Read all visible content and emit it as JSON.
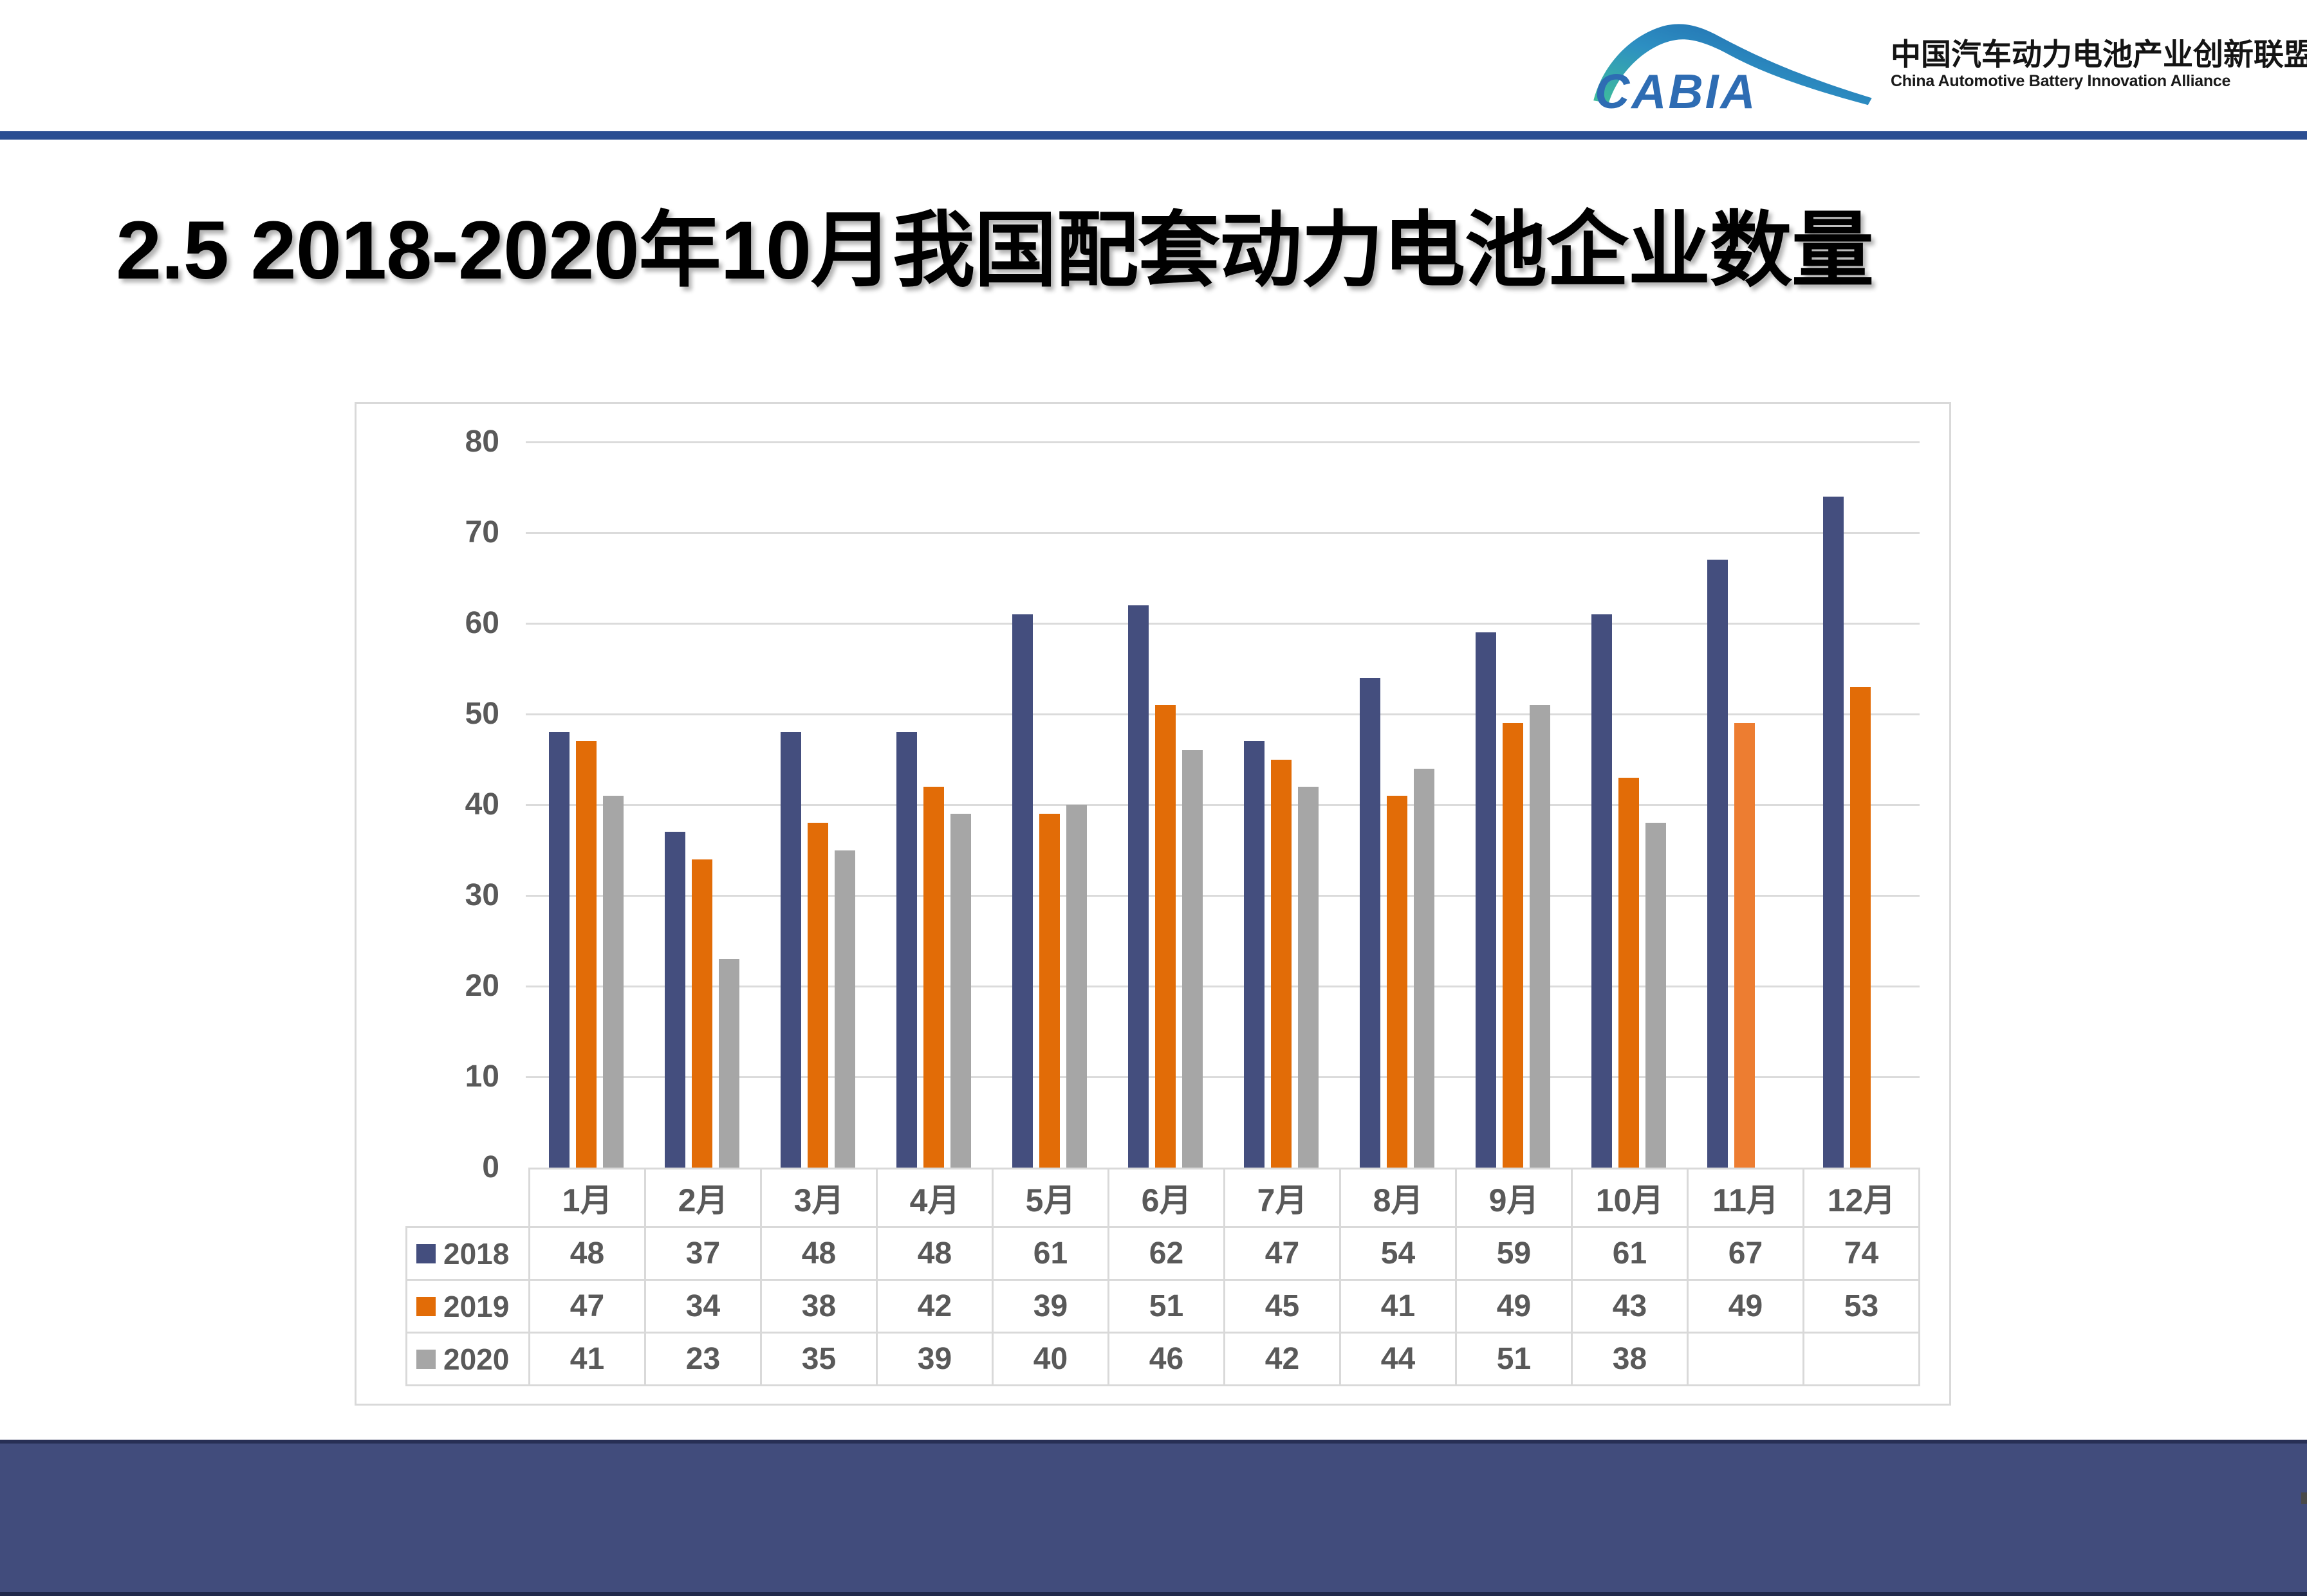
{
  "logo": {
    "abbr": "CABIA",
    "cn": "中国汽车动力电池产业创新联盟",
    "en": "China Automotive Battery Innovation Alliance"
  },
  "title": "2.5 2018-2020年10月我国配套动力电池企业数量",
  "chart_data": {
    "type": "bar",
    "title": "",
    "xlabel": "",
    "ylabel": "",
    "categories": [
      "1月",
      "2月",
      "3月",
      "4月",
      "5月",
      "6月",
      "7月",
      "8月",
      "9月",
      "10月",
      "11月",
      "12月"
    ],
    "series": [
      {
        "name": "2018",
        "color": "#444E7E",
        "values": [
          48,
          37,
          48,
          48,
          61,
          62,
          47,
          54,
          59,
          61,
          67,
          74
        ]
      },
      {
        "name": "2019",
        "color": "#E26C07",
        "highlight_index": 10,
        "highlight_color": "#ED7D31",
        "values": [
          47,
          34,
          38,
          42,
          39,
          51,
          45,
          41,
          49,
          43,
          49,
          53
        ]
      },
      {
        "name": "2020",
        "color": "#A6A6A6",
        "values": [
          41,
          23,
          35,
          39,
          40,
          46,
          42,
          44,
          51,
          38,
          null,
          null
        ]
      }
    ],
    "ylim": [
      0,
      80
    ],
    "yticks": [
      0,
      10,
      20,
      30,
      40,
      50,
      60,
      70,
      80
    ],
    "grid": true,
    "legend_position": "table-left"
  },
  "colors": {
    "rule_blue": "#2B4E92",
    "footer_navy": "#414C7C",
    "grid": "#DBDBDB",
    "axis_text": "#595959",
    "logo_blue": "#2E6CB3",
    "logo_teal": "#3FBF9A"
  }
}
